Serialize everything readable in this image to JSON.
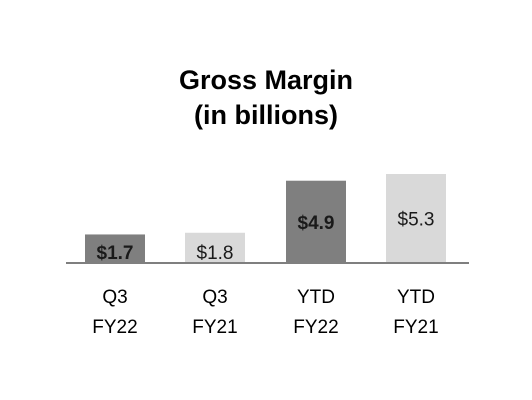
{
  "chart_data": {
    "type": "bar",
    "title_line1": "Gross Margin",
    "title_line2": "(in billions)",
    "categories": [
      {
        "line1": "Q3",
        "line2": "FY22"
      },
      {
        "line1": "Q3",
        "line2": "FY21"
      },
      {
        "line1": "YTD",
        "line2": "FY22"
      },
      {
        "line1": "YTD",
        "line2": "FY21"
      }
    ],
    "values": [
      1.7,
      1.8,
      4.9,
      5.3
    ],
    "data_labels": [
      "$1.7",
      "$1.8",
      "$4.9",
      "$5.3"
    ],
    "bar_colors": [
      "#7f7f7f",
      "#d9d9d9",
      "#7f7f7f",
      "#d9d9d9"
    ],
    "label_bold": [
      true,
      false,
      true,
      false
    ],
    "baseline_color": "#7f7f7f",
    "ylim": [
      0,
      5.3
    ],
    "grid": false,
    "legend": "none"
  }
}
